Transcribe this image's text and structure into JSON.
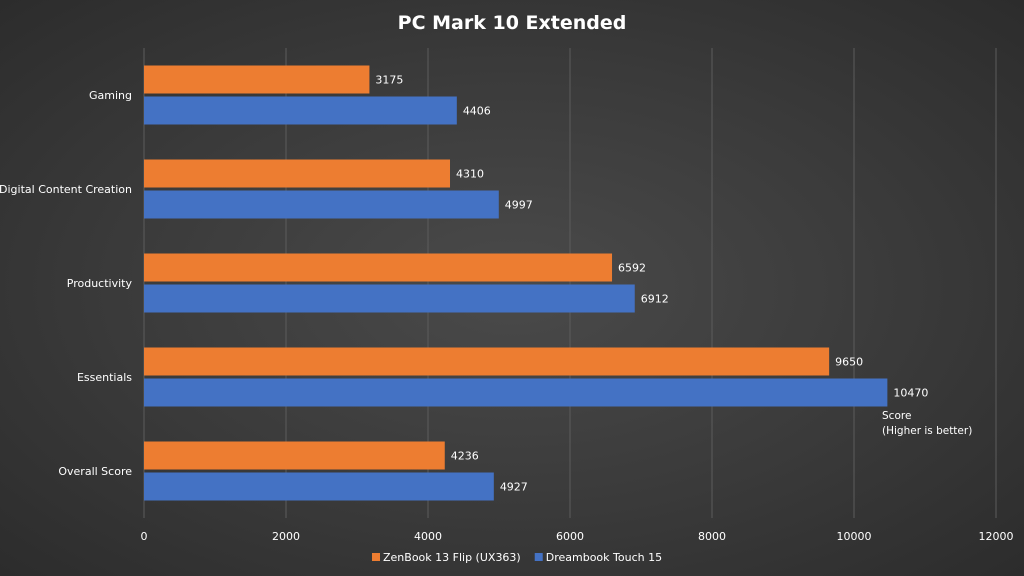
{
  "chart_data": {
    "type": "bar",
    "orientation": "horizontal",
    "title": "PC Mark 10 Extended",
    "categories": [
      "Gaming",
      "Digital Content Creation",
      "Productivity",
      "Essentials",
      "Overall Score"
    ],
    "series": [
      {
        "name": "ZenBook 13 Flip (UX363)",
        "color": "#ed7d31",
        "values": [
          3175,
          4310,
          6592,
          9650,
          4236
        ]
      },
      {
        "name": "Dreambook Touch 15",
        "color": "#4472c4",
        "values": [
          4406,
          4997,
          6912,
          10470,
          4927
        ]
      }
    ],
    "xlim": [
      0,
      12000
    ],
    "xticks": [
      0,
      2000,
      4000,
      6000,
      8000,
      10000,
      12000
    ],
    "grid": true,
    "legend_position": "bottom",
    "annotation": [
      "Score",
      "(Higher is better)"
    ]
  }
}
